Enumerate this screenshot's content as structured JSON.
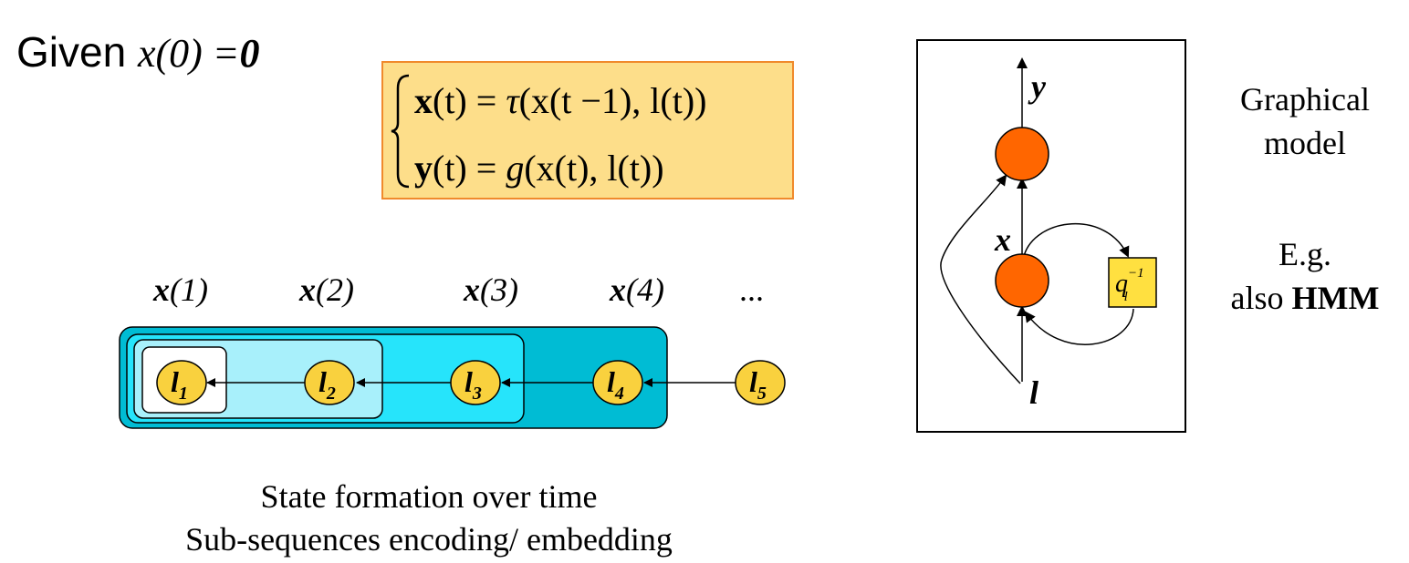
{
  "heading": {
    "prefix": "Given ",
    "expr": "x(0) =",
    "zero": "0"
  },
  "equations": {
    "line1": {
      "lhs_var": "x",
      "lhs_arg": "(t) = ",
      "fn": "τ",
      "rhs": "(x(t −1), l(t))"
    },
    "line2": {
      "lhs_var": "y",
      "lhs_arg": "(t) = ",
      "fn": "g",
      "rhs": "(x(t), l(t))"
    }
  },
  "state_labels": [
    {
      "var": "x",
      "arg": "(1)"
    },
    {
      "var": "x",
      "arg": "(2)"
    },
    {
      "var": "x",
      "arg": "(3)"
    },
    {
      "var": "x",
      "arg": "(4)"
    }
  ],
  "ellipsis": "...",
  "nodes": [
    {
      "base": "l",
      "sub": "1"
    },
    {
      "base": "l",
      "sub": "2"
    },
    {
      "base": "l",
      "sub": "3"
    },
    {
      "base": "l",
      "sub": "4"
    },
    {
      "base": "l",
      "sub": "5"
    }
  ],
  "caption": {
    "line1": "State formation over time",
    "line2": "Sub-sequences encoding/ embedding"
  },
  "graphical_model": {
    "output_label": "y",
    "state_label": "x",
    "input_label": "l",
    "delay": {
      "base": "q",
      "sup": "−1",
      "sub": "l"
    }
  },
  "side_text": {
    "graphical_line1": "Graphical",
    "graphical_line2": "model",
    "eg_line1": "E.g.",
    "eg_prefix": "also ",
    "eg_bold": "HMM"
  },
  "colors": {
    "equation_fill": "#fdde8a",
    "equation_border": "#f08a2c",
    "node_fill": "#f9d13e",
    "outer_box": "#00bcd4",
    "box3": "#26e4fb",
    "box2": "#a8f0fb",
    "model_node": "#ff6600",
    "delay_fill": "#ffe040"
  }
}
